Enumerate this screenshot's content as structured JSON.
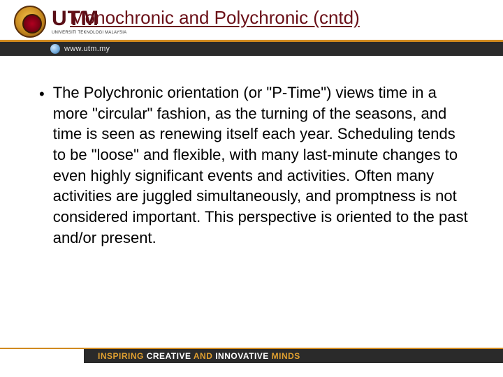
{
  "header": {
    "logo_main": "UTM",
    "logo_sub": "UNIVERSITI TEKNOLOGI MALAYSIA",
    "title": "Monochronic and Polychronic (cntd)",
    "url": "www.utm.my"
  },
  "content": {
    "bullet_text": "The Polychronic orientation (or \"P-Time\") views time in a more \"circular\" fashion, as the turning of the seasons, and time is seen as renewing itself each year.  Scheduling tends to be \"loose\" and flexible, with many last-minute changes to even highly significant events and activities.  Often many activities are juggled simultaneously, and promptness is not considered important.  This perspective is oriented to the past and/or present."
  },
  "footer": {
    "word1": "INSPIRING",
    "word2": "CREATIVE",
    "word3": "AND",
    "word4": "INNOVATIVE",
    "word5": "MINDS"
  },
  "colors": {
    "title_color": "#6a0f17",
    "accent_gold": "#d08a1f",
    "dark_bar": "#2a2a2a",
    "text": "#000000",
    "footer_accent": "#e0a030",
    "background": "#ffffff"
  },
  "typography": {
    "title_fontsize": 26,
    "body_fontsize": 22,
    "footer_fontsize": 12
  }
}
